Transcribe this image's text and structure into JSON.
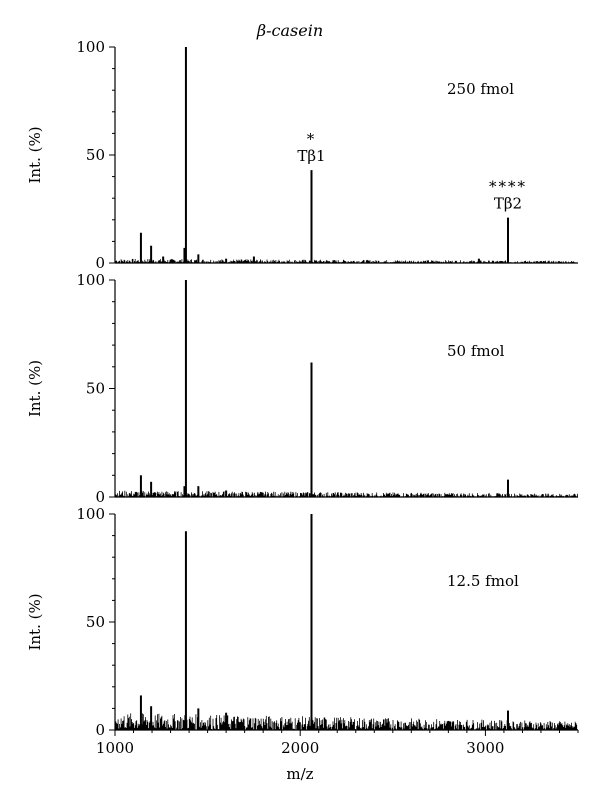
{
  "chart_data": {
    "type": "line",
    "title": "β-casein",
    "xlabel": "m/z",
    "xlim": [
      1000,
      3500
    ],
    "xticks": [
      1000,
      2000,
      3000
    ],
    "grid": false,
    "panels": [
      {
        "ylabel": "Int. (%)",
        "ylim": [
          0,
          100
        ],
        "yticks": [
          0,
          50,
          100
        ],
        "series_name": "250 fmol",
        "noise_level": 2,
        "peaks": [
          {
            "x": 1140,
            "y": 14
          },
          {
            "x": 1195,
            "y": 8
          },
          {
            "x": 1260,
            "y": 3
          },
          {
            "x": 1375,
            "y": 7
          },
          {
            "x": 1383,
            "y": 100
          },
          {
            "x": 1450,
            "y": 4
          },
          {
            "x": 1600,
            "y": 2
          },
          {
            "x": 1750,
            "y": 3
          },
          {
            "x": 2061,
            "y": 43
          },
          {
            "x": 2965,
            "y": 2
          },
          {
            "x": 3122,
            "y": 21
          }
        ],
        "annotations": [
          {
            "x": 2061,
            "y": 43,
            "marker": "*",
            "label": "Tβ1"
          },
          {
            "x": 3122,
            "y": 21,
            "marker": "****",
            "label": "Tβ2"
          }
        ]
      },
      {
        "ylabel": "Int. (%)",
        "ylim": [
          0,
          100
        ],
        "yticks": [
          0,
          50,
          100
        ],
        "series_name": "50 fmol",
        "noise_level": 3,
        "peaks": [
          {
            "x": 1140,
            "y": 10
          },
          {
            "x": 1195,
            "y": 7
          },
          {
            "x": 1375,
            "y": 5
          },
          {
            "x": 1383,
            "y": 100
          },
          {
            "x": 1450,
            "y": 5
          },
          {
            "x": 1600,
            "y": 3
          },
          {
            "x": 2061,
            "y": 62
          },
          {
            "x": 3122,
            "y": 8
          }
        ],
        "annotations": []
      },
      {
        "ylabel": "Int. (%)",
        "ylim": [
          0,
          100
        ],
        "yticks": [
          0,
          50,
          100
        ],
        "series_name": "12.5 fmol",
        "noise_level": 8,
        "peaks": [
          {
            "x": 1140,
            "y": 16
          },
          {
            "x": 1195,
            "y": 11
          },
          {
            "x": 1383,
            "y": 92
          },
          {
            "x": 1450,
            "y": 10
          },
          {
            "x": 1600,
            "y": 8
          },
          {
            "x": 2061,
            "y": 100
          },
          {
            "x": 3122,
            "y": 9
          }
        ],
        "annotations": []
      }
    ]
  }
}
